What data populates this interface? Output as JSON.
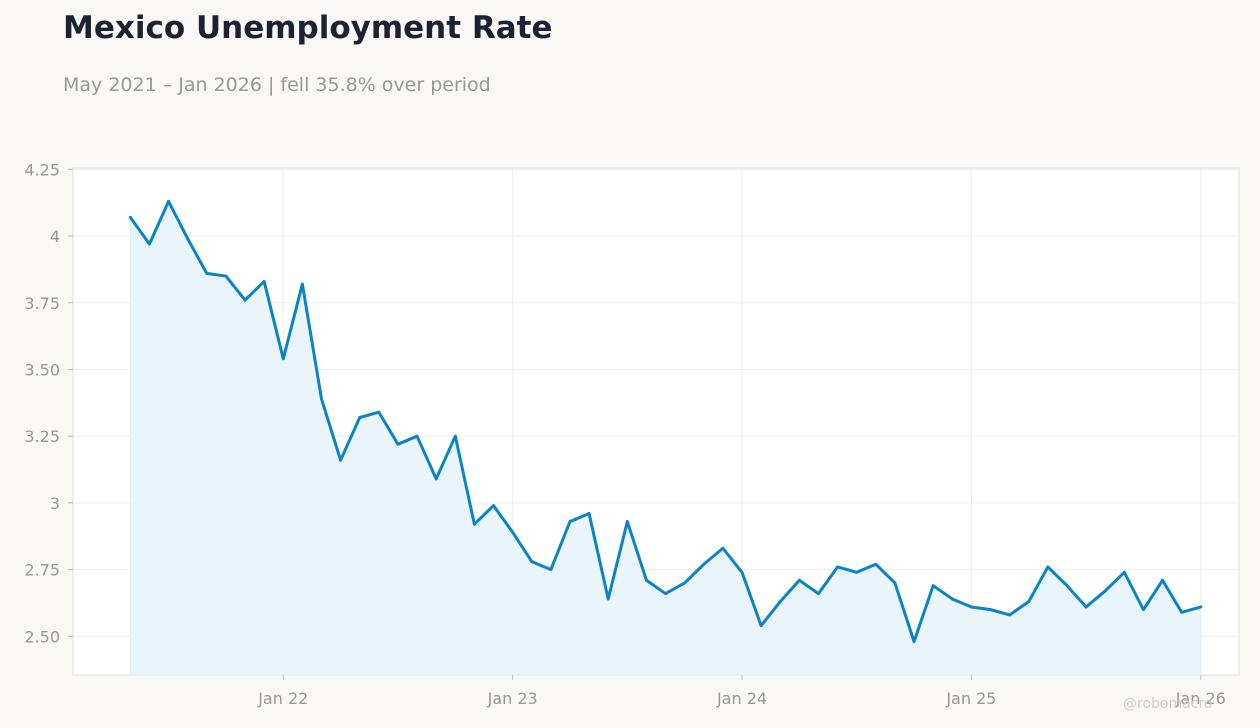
{
  "title": "Mexico Unemployment Rate",
  "subtitle": "May 2021 – Jan 2026 | fell 35.8% over period",
  "watermark": "@robomacro",
  "colors": {
    "line": "#0a84c6",
    "fill": "#eaf4fb",
    "background": "#f9f8f5",
    "plot": "#ffffff"
  },
  "chart_data": {
    "type": "area",
    "title": "Mexico Unemployment Rate",
    "subtitle": "May 2021 – Jan 2026 | fell 35.8% over period",
    "xlabel": "",
    "ylabel": "",
    "x_start": "2021-05",
    "x_frequency": "monthly",
    "xlim": [
      "2021-02",
      "2026-03"
    ],
    "ylim": [
      2.355,
      4.255
    ],
    "grid": true,
    "legend": "none",
    "y_ticks": [
      {
        "value": 2.5,
        "label": "2.50"
      },
      {
        "value": 2.75,
        "label": "2.75"
      },
      {
        "value": 3,
        "label": "3"
      },
      {
        "value": 3.25,
        "label": "3.25"
      },
      {
        "value": 3.5,
        "label": "3.50"
      },
      {
        "value": 3.75,
        "label": "3.75"
      },
      {
        "value": 4,
        "label": "4"
      },
      {
        "value": 4.25,
        "label": "4.25"
      }
    ],
    "x_ticks": [
      {
        "date": "2022-01",
        "label": "Jan 22"
      },
      {
        "date": "2023-01",
        "label": "Jan 23"
      },
      {
        "date": "2024-01",
        "label": "Jan 24"
      },
      {
        "date": "2025-01",
        "label": "Jan 25"
      },
      {
        "date": "2026-01",
        "label": "Jan 26"
      }
    ],
    "series": [
      {
        "values": [
          4.07,
          3.97,
          4.13,
          3.99,
          3.86,
          3.85,
          3.76,
          3.83,
          3.54,
          3.82,
          3.39,
          3.16,
          3.32,
          3.34,
          3.22,
          3.25,
          3.09,
          3.25,
          2.92,
          2.99,
          2.89,
          2.78,
          2.75,
          2.93,
          2.96,
          2.64,
          2.93,
          2.71,
          2.66,
          2.7,
          2.77,
          2.83,
          2.74,
          2.54,
          2.63,
          2.71,
          2.66,
          2.76,
          2.74,
          2.77,
          2.7,
          2.48,
          2.69,
          2.64,
          2.61,
          2.6,
          2.58,
          2.63,
          2.76,
          2.69,
          2.61,
          2.67,
          2.74,
          2.6,
          2.71,
          2.59,
          2.61
        ]
      }
    ]
  }
}
